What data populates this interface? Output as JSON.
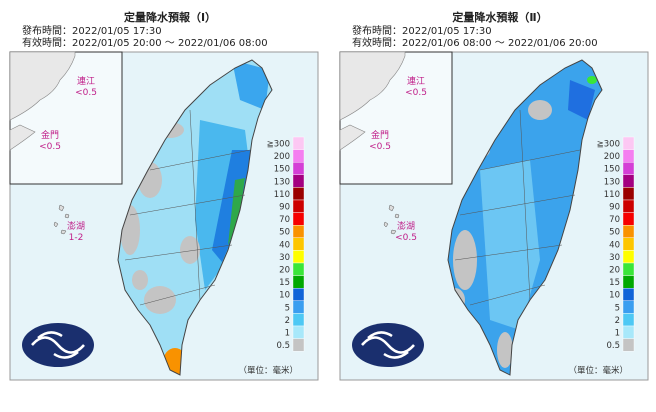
{
  "panels": [
    {
      "title": "定量降水預報（Ⅰ）",
      "issue_time": "發布時間：2022/01/05 17:30",
      "valid_time": "有效時間：2022/01/05 20:00 ～ 2022/01/06 08:00",
      "islands": [
        {
          "name": "連江",
          "amount": "<0.5"
        },
        {
          "name": "金門",
          "amount": "<0.5"
        },
        {
          "name": "澎湖",
          "amount": "1-2"
        }
      ]
    },
    {
      "title": "定量降水預報（Ⅱ）",
      "issue_time": "發布時間：2022/01/05 17:30",
      "valid_time": "有效時間：2022/01/06 08:00 ～ 2022/01/06 20:00",
      "islands": [
        {
          "name": "連江",
          "amount": "<0.5"
        },
        {
          "name": "金門",
          "amount": "<0.5"
        },
        {
          "name": "澎湖",
          "amount": "<0.5"
        }
      ]
    }
  ],
  "legend": {
    "labels": [
      "≧300",
      "200",
      "150",
      "130",
      "110",
      "90",
      "70",
      "50",
      "40",
      "30",
      "20",
      "15",
      "10",
      "5",
      "2",
      "1",
      "0.5"
    ],
    "unit": "（單位：毫米）"
  }
}
